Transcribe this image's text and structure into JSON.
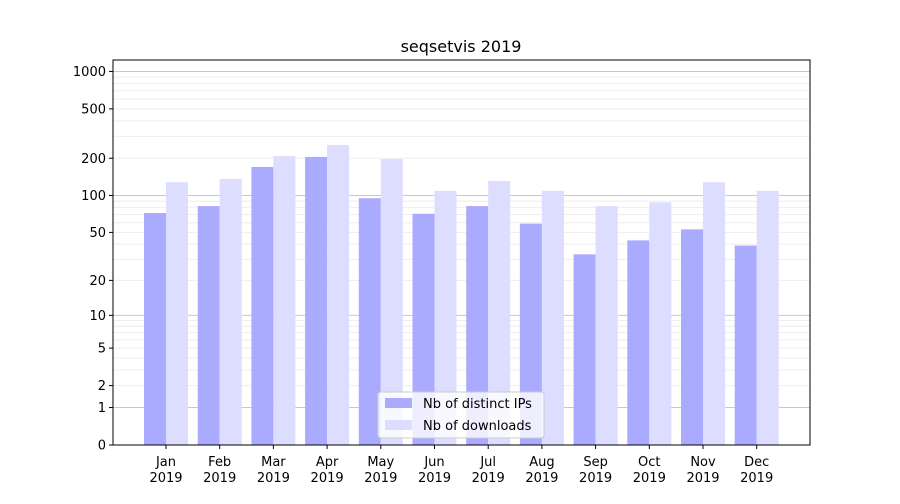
{
  "chart_data": {
    "type": "bar",
    "title": "seqsetvis 2019",
    "xlabel": "",
    "ylabel": "",
    "y_scale": "log(x+1)",
    "ylim": [
      0,
      1300
    ],
    "y_ticks": [
      0,
      1,
      2,
      5,
      10,
      20,
      50,
      100,
      200,
      500,
      1000
    ],
    "grid": true,
    "legend_position": "bottom-center",
    "categories": [
      "Jan\n2019",
      "Feb\n2019",
      "Mar\n2019",
      "Apr\n2019",
      "May\n2019",
      "Jun\n2019",
      "Jul\n2019",
      "Aug\n2019",
      "Sep\n2019",
      "Oct\n2019",
      "Nov\n2019",
      "Dec\n2019"
    ],
    "series": [
      {
        "name": "Nb of distinct IPs",
        "color": "#aaaaff",
        "values": [
          72,
          82,
          170,
          205,
          95,
          71,
          82,
          59,
          33,
          43,
          53,
          39
        ]
      },
      {
        "name": "Nb of downloads",
        "color": "#ddddff",
        "values": [
          128,
          136,
          208,
          256,
          197,
          109,
          131,
          109,
          82,
          88,
          128,
          109
        ]
      }
    ]
  }
}
